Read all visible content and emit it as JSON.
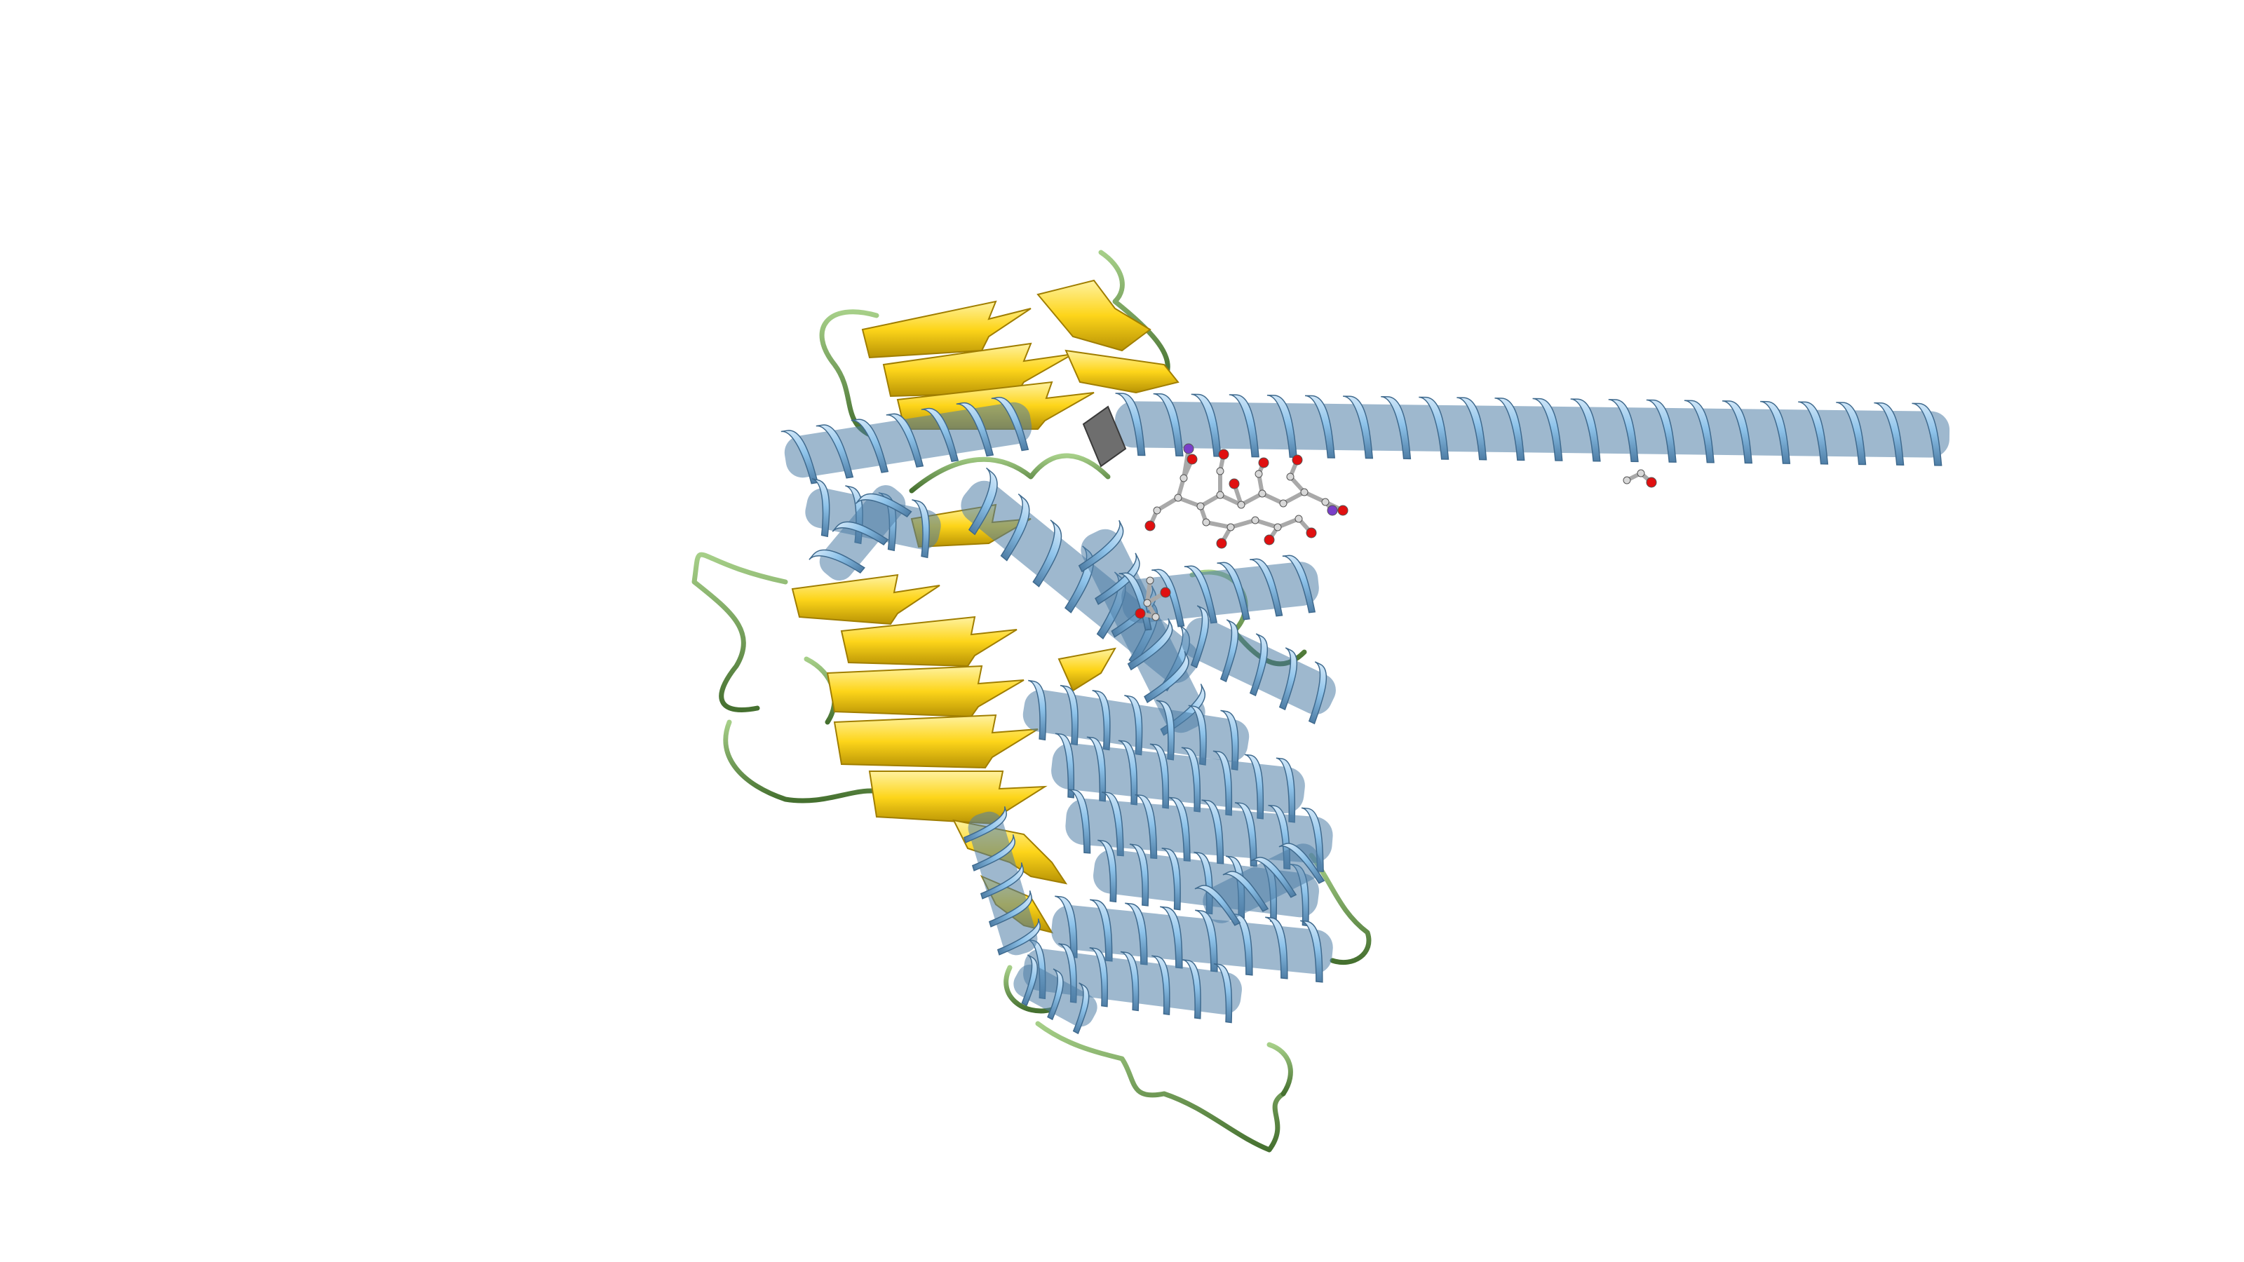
{
  "scene": {
    "background": "#ffffff",
    "colors": {
      "helix": "#8ec3ea",
      "helix_shade": "#4f7ea6",
      "sheet": "#fdd51a",
      "sheet_shade": "#b89304",
      "loop": "#7aab5a",
      "loop_shade": "#45702f",
      "hinge": "#6e6e6e",
      "ligand_carbon": "#d8d8d8",
      "ligand_oxygen": "#e01010",
      "ligand_nitrogen": "#7a3fc8"
    },
    "icons": {
      "helices": "alpha-helix-ribbon",
      "sheets": "beta-strand-arrow",
      "loops": "coil-tube",
      "ligand": "ball-and-stick-molecule"
    }
  }
}
